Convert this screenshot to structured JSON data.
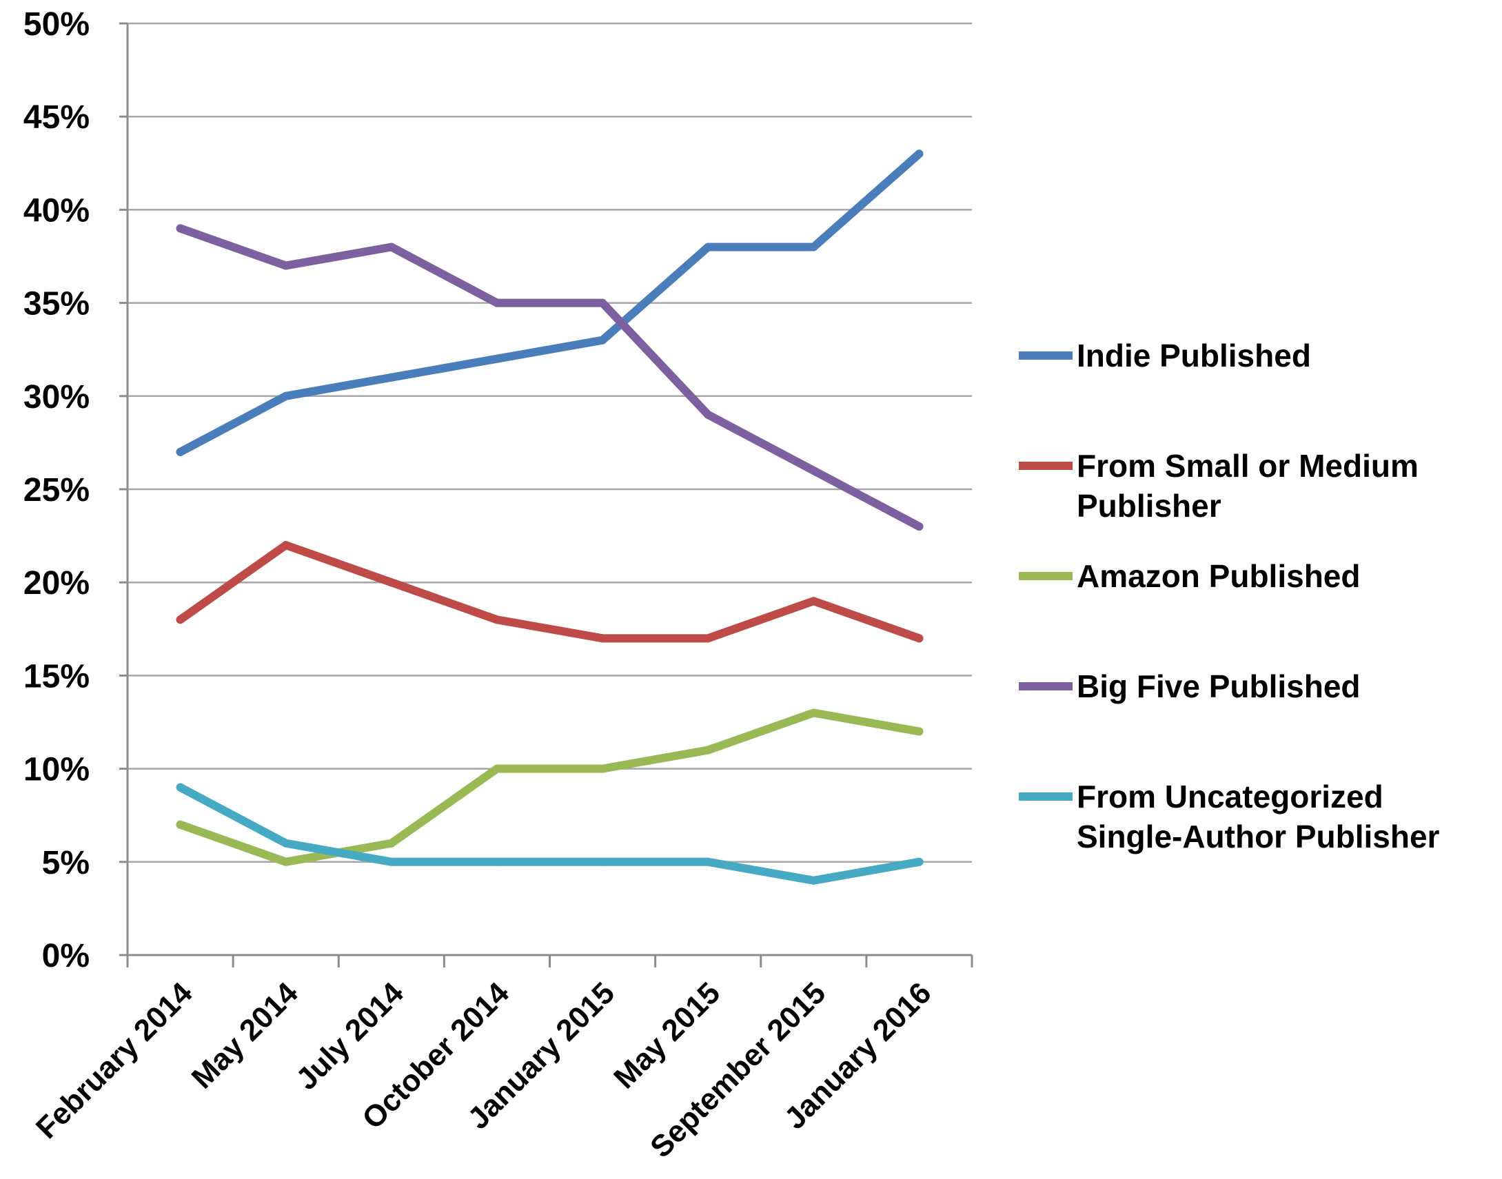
{
  "chart_data": {
    "type": "line",
    "title": "",
    "xlabel": "",
    "ylabel": "",
    "ylim": [
      0,
      50
    ],
    "ytick_step": 5,
    "ytick_format": "percent",
    "grid": "horizontal",
    "legend_position": "right",
    "categories": [
      "February 2014",
      "May 2014",
      "July 2014",
      "October 2014",
      "January 2015",
      "May 2015",
      "September 2015",
      "January 2016"
    ],
    "series": [
      {
        "name": "Indie Published",
        "color": "#4a7ebb",
        "values": [
          27,
          30,
          31,
          32,
          33,
          38,
          38,
          43
        ]
      },
      {
        "name": "From Small or Medium Publisher",
        "color": "#be4b48",
        "values": [
          18,
          22,
          20,
          18,
          17,
          17,
          19,
          17
        ]
      },
      {
        "name": "Amazon Published",
        "color": "#98b954",
        "values": [
          7,
          5,
          6,
          10,
          10,
          11,
          13,
          12
        ]
      },
      {
        "name": "Big Five Published",
        "color": "#7d60a0",
        "values": [
          39,
          37,
          38,
          35,
          35,
          29,
          26,
          23
        ]
      },
      {
        "name": "From Uncategorized Single-Author Publisher",
        "color": "#46aac5",
        "values": [
          9,
          6,
          5,
          5,
          5,
          5,
          4,
          5
        ]
      }
    ]
  }
}
